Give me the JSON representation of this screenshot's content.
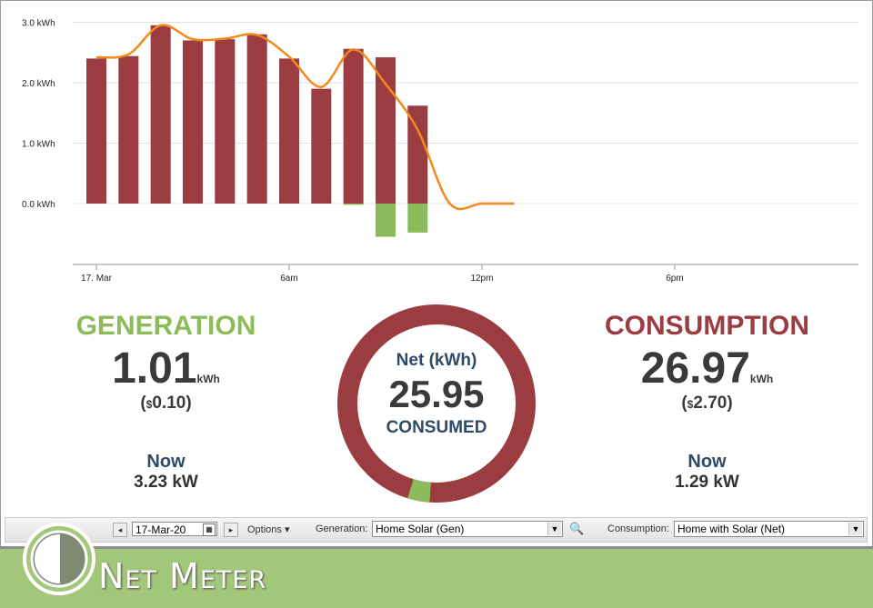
{
  "chart_data": {
    "type": "bar",
    "ylabel_ticks": [
      "3.0 kWh",
      "2.0 kWh",
      "1.0 kWh",
      "0.0 kWh"
    ],
    "x_ticks": [
      "17. Mar",
      "6am",
      "12pm",
      "6pm"
    ],
    "ylim": [
      -1.0,
      3.25
    ],
    "grid": true,
    "categories_hours": [
      0,
      1,
      2,
      3,
      4,
      5,
      6,
      7,
      8,
      9,
      10
    ],
    "series": [
      {
        "color": "#9a3c40",
        "values": [
          2.4,
          2.44,
          2.95,
          2.7,
          2.72,
          2.8,
          2.4,
          1.9,
          2.56,
          2.42,
          1.62
        ]
      },
      {
        "color": "#8cbb5b",
        "values": [
          0,
          0,
          0,
          0,
          0,
          0,
          0,
          0,
          -0.02,
          -0.55,
          -0.48
        ]
      }
    ],
    "line": {
      "color": "#f08a1a",
      "values": [
        2.42,
        2.47,
        2.95,
        2.72,
        2.73,
        2.79,
        2.43,
        1.93,
        2.55,
        1.98,
        1.22,
        0.0,
        0.0,
        0.0
      ]
    }
  },
  "generation": {
    "title": "GENERATION",
    "value": "1.01",
    "unit": "kWh",
    "cost_prefix": "(",
    "cost_symbol": "$",
    "cost_value": "0.10)",
    "now_label": "Now",
    "now_value": "3.23 kW",
    "color": "#8cbb5b"
  },
  "consumption": {
    "title": "CONSUMPTION",
    "value": "26.97",
    "unit": "kWh",
    "cost_prefix": "(",
    "cost_symbol": "$",
    "cost_value": "2.70)",
    "now_label": "Now",
    "now_value": "1.29 kW",
    "color": "#9a3c40"
  },
  "net": {
    "label": "Net (kWh)",
    "value": "25.95",
    "status": "CONSUMED",
    "consumption_fraction": 0.964,
    "generation_fraction": 0.036
  },
  "toolbar": {
    "prev_icon": "arrow-left-icon",
    "date_value": "17-Mar-20",
    "calendar_icon": "calendar-icon",
    "next_icon": "arrow-right-icon",
    "options_label": "Options",
    "generation_label": "Generation:",
    "generation_selected": "Home Solar (Gen)",
    "search_icon": "magnifier-icon",
    "consumption_label": "Consumption:",
    "consumption_selected": "Home with Solar (Net)"
  },
  "footer": {
    "brand": "Net Meter",
    "logo_icon": "net-meter-logo-icon"
  }
}
